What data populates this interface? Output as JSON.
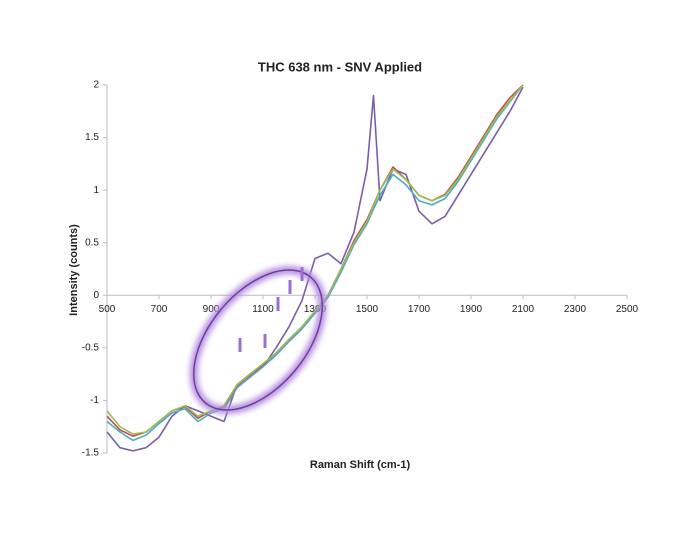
{
  "chart_data": {
    "type": "line",
    "title": "THC 638 nm - SNV Applied",
    "x_label": "Raman Shift (cm-1)",
    "y_label": "Intensity (counts)",
    "x": [
      500,
      550,
      600,
      650,
      700,
      750,
      800,
      850,
      900,
      950,
      1000,
      1050,
      1100,
      1150,
      1200,
      1250,
      1300,
      1350,
      1400,
      1450,
      1500,
      1525,
      1550,
      1600,
      1650,
      1700,
      1750,
      1800,
      1850,
      1900,
      1950,
      2000,
      2050,
      2100
    ],
    "series": [
      {
        "name": "Purple",
        "color": "#7a5ea8",
        "values": [
          -1.3,
          -1.45,
          -1.48,
          -1.45,
          -1.35,
          -1.15,
          -1.05,
          -1.1,
          -1.15,
          -1.2,
          -0.85,
          -0.75,
          -0.68,
          -0.5,
          -0.3,
          -0.05,
          0.35,
          0.4,
          0.3,
          0.6,
          1.2,
          1.9,
          0.9,
          1.2,
          1.15,
          0.8,
          0.68,
          0.75,
          0.95,
          1.15,
          1.35,
          1.55,
          1.75,
          1.98
        ]
      },
      {
        "name": "Blue",
        "color": "#4bacc6",
        "values": [
          -1.2,
          -1.3,
          -1.38,
          -1.33,
          -1.22,
          -1.12,
          -1.08,
          -1.2,
          -1.12,
          -1.08,
          -0.88,
          -0.78,
          -0.68,
          -0.57,
          -0.44,
          -0.32,
          -0.17,
          -0.02,
          0.22,
          0.48,
          0.68,
          0.82,
          0.95,
          1.15,
          1.05,
          0.9,
          0.86,
          0.92,
          1.08,
          1.28,
          1.48,
          1.68,
          1.84,
          2.0
        ]
      },
      {
        "name": "Red",
        "color": "#c0504d",
        "values": [
          -1.15,
          -1.28,
          -1.34,
          -1.3,
          -1.2,
          -1.1,
          -1.06,
          -1.17,
          -1.1,
          -1.06,
          -0.86,
          -0.76,
          -0.66,
          -0.55,
          -0.42,
          -0.3,
          -0.15,
          0.0,
          0.25,
          0.52,
          0.72,
          0.86,
          1.0,
          1.22,
          1.1,
          0.95,
          0.9,
          0.96,
          1.12,
          1.32,
          1.52,
          1.72,
          1.88,
          2.0
        ]
      },
      {
        "name": "Green",
        "color": "#9bbb59",
        "values": [
          -1.1,
          -1.25,
          -1.32,
          -1.3,
          -1.2,
          -1.1,
          -1.05,
          -1.15,
          -1.1,
          -1.05,
          -0.85,
          -0.75,
          -0.65,
          -0.55,
          -0.42,
          -0.3,
          -0.15,
          0.0,
          0.25,
          0.5,
          0.7,
          0.85,
          1.0,
          1.2,
          1.1,
          0.95,
          0.9,
          0.95,
          1.1,
          1.3,
          1.5,
          1.7,
          1.85,
          2.0
        ]
      }
    ],
    "xlim": [
      500,
      2500
    ],
    "xticks": [
      500,
      700,
      900,
      1100,
      1300,
      1500,
      1700,
      1900,
      2100,
      2300,
      2500
    ],
    "ylim": [
      -1.5,
      2
    ],
    "yticks": [
      -1.5,
      -1,
      -0.5,
      0,
      0.5,
      1,
      1.5,
      2
    ]
  }
}
